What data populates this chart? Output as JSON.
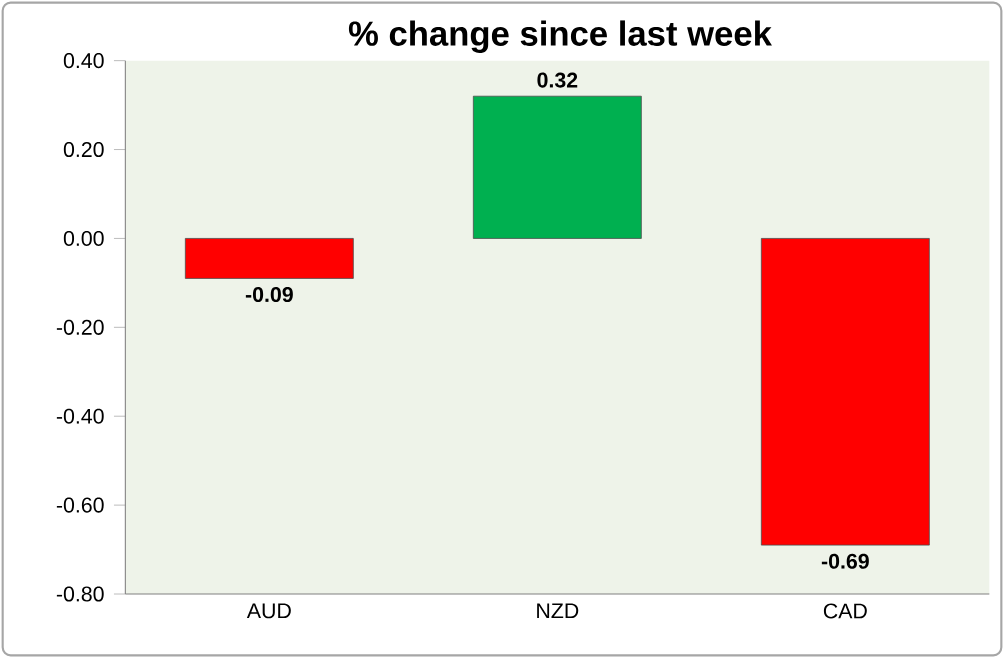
{
  "chart_data": {
    "type": "bar",
    "title": "% change since last week",
    "categories": [
      "AUD",
      "NZD",
      "CAD"
    ],
    "values": [
      -0.09,
      0.32,
      -0.69
    ],
    "colors": [
      "#ff0000",
      "#00b050",
      "#ff0000"
    ],
    "value_labels": [
      "-0.09",
      "0.32",
      "-0.69"
    ],
    "ylim": [
      -0.8,
      0.4
    ],
    "yticks": [
      {
        "value": -0.8,
        "label": "-0.80"
      },
      {
        "value": -0.6,
        "label": "-0.60"
      },
      {
        "value": -0.4,
        "label": "-0.40"
      },
      {
        "value": -0.2,
        "label": "-0.20"
      },
      {
        "value": 0,
        "label": "0.00"
      },
      {
        "value": 0.2,
        "label": "0.20"
      },
      {
        "value": 0.4,
        "label": "0.40"
      }
    ],
    "grid": false
  }
}
